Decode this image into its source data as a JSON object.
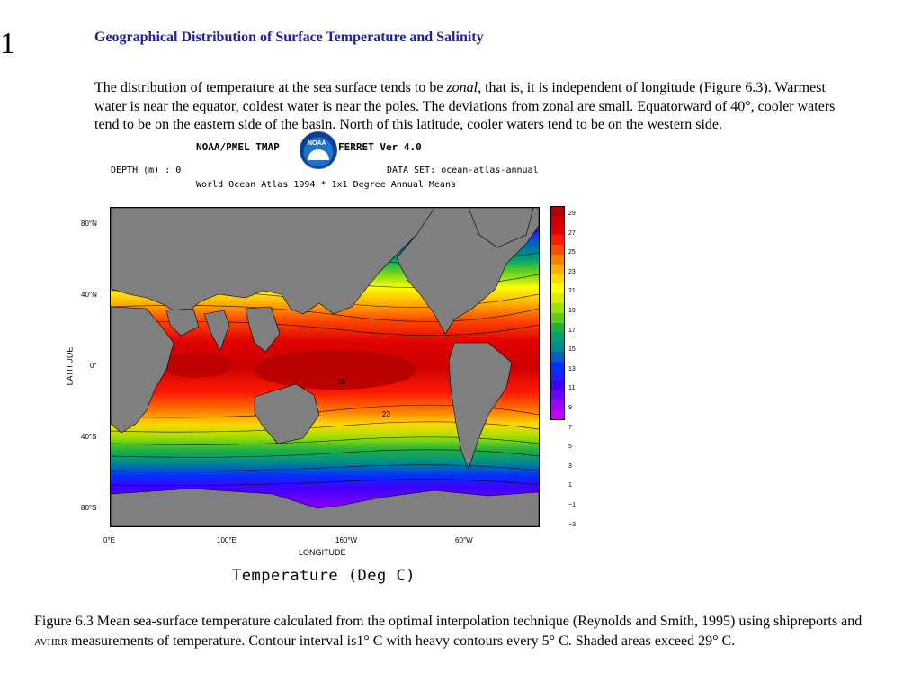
{
  "slide": {
    "number": "1"
  },
  "title": "Geographical Distribution of Surface Temperature and Salinity",
  "body": {
    "part1": "The distribution of temperature at the sea surface tends to be ",
    "emph": "zonal",
    "part2": ", that is, it is independent of longitude (Figure 6.3). Warmest water is near the equator, coldest water is near the poles. The deviations from zonal are small. Equatorward of 40°, cooler waters tend to be on the eastern side of the basin. North of this latitude, cooler waters tend to be on the western side."
  },
  "figure": {
    "header_left": "NOAA/PMEL TMAP",
    "header_right": "FERRET Ver 4.0",
    "logo_text": "NOAA",
    "depth": "DEPTH (m) : 0",
    "dataset": "DATA SET: ocean-atlas-annual",
    "subtitle": "World Ocean Atlas 1994 * 1x1 Degree Annual Means",
    "lat_ticks": [
      "80°N",
      "40°N",
      "0°",
      "40°S",
      "80°S"
    ],
    "lon_ticks": [
      "0°E",
      "100°E",
      "160°W",
      "60°W"
    ],
    "y_axis_title": "LATITUDE",
    "x_axis_title": "LONGITUDE",
    "contour_labels": [
      "29",
      "23"
    ],
    "legend_labels": [
      "29",
      "27",
      "25",
      "23",
      "21",
      "19",
      "17",
      "15",
      "13",
      "11",
      "9",
      "7",
      "5",
      "3",
      "1",
      "−1",
      "−3"
    ],
    "legend_colors": [
      "#b30000",
      "#cc0000",
      "#e00000",
      "#ff1a00",
      "#ff4d00",
      "#ff8000",
      "#ffb000",
      "#ffd800",
      "#ffff00",
      "#d8ee00",
      "#a0e000",
      "#60cc20",
      "#20b040",
      "#00a070",
      "#008c8c",
      "#0060c0",
      "#0030ff",
      "#2020ff",
      "#4000ff",
      "#7000ff",
      "#a000ff",
      "#c000ff"
    ],
    "bottom_title": "Temperature (Deg C)"
  },
  "caption": {
    "part1": "Figure 6.3 Mean sea-surface temperature calculated from the optimal interpolation technique (Reynolds and Smith, 1995) using shipreports and ",
    "avhrr": "avhrr",
    "part2": " measurements of temperature. Contour interval is1° C with heavy contours every 5° C. Shaded areas exceed 29° C."
  }
}
